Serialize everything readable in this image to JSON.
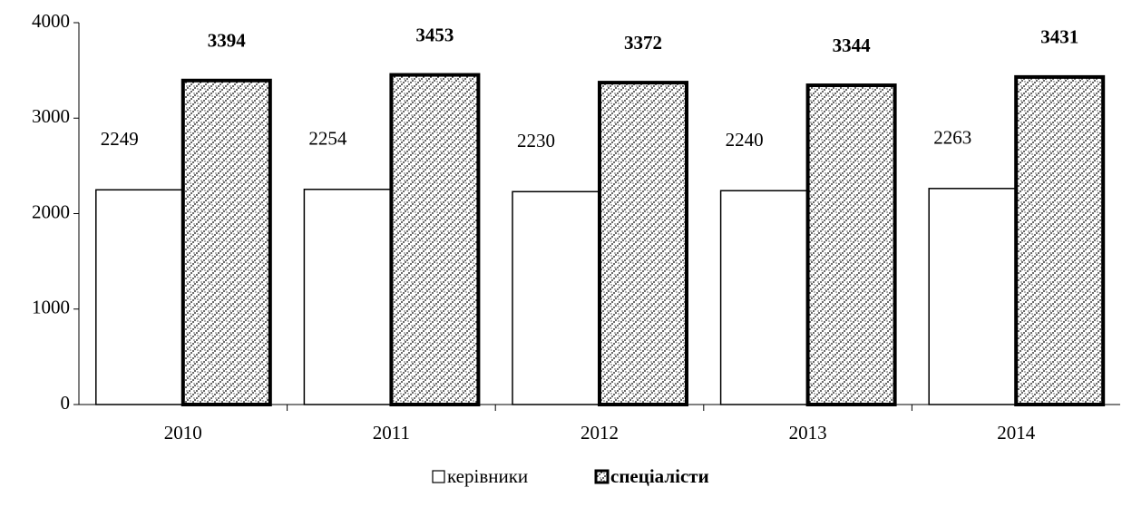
{
  "chart_data": {
    "type": "bar",
    "categories": [
      "2010",
      "2011",
      "2012",
      "2013",
      "2014"
    ],
    "series": [
      {
        "name": "керівники",
        "color": "#ffffff",
        "values": [
          2249,
          2254,
          2230,
          2240,
          2263
        ]
      },
      {
        "name": "спеціалісти",
        "color": "#000000",
        "pattern": true,
        "values": [
          3394,
          3453,
          3372,
          3344,
          3431
        ]
      }
    ],
    "ylim": [
      0,
      4000
    ],
    "yticks": [
      0,
      1000,
      2000,
      3000,
      4000
    ],
    "grid": false
  }
}
